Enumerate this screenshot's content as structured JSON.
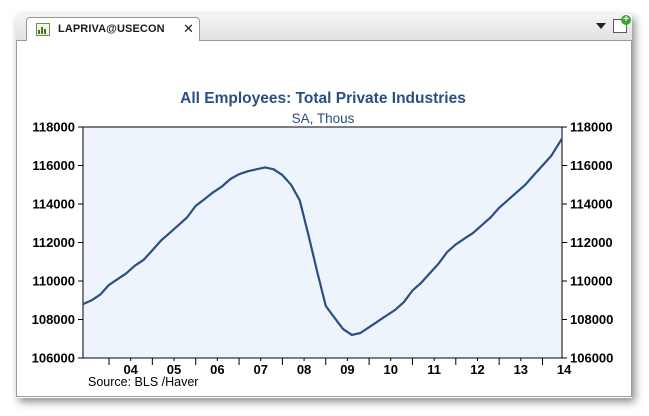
{
  "tab": {
    "label": "LAPRIVA@USECON",
    "close_glyph": "✕"
  },
  "toolbar": {
    "dropdown_icon": "chevron-down-icon",
    "chart_icon": "add-chart-icon"
  },
  "colors": {
    "line": "#2b4f80",
    "plot_bg": "#eef4fc",
    "title": "#2b4f80"
  },
  "chart_data": {
    "type": "line",
    "title": "All Employees: Total Private Industries",
    "subtitle": "SA, Thous",
    "source": "Source:  BLS /Haver",
    "x_tick_labels": [
      "04",
      "05",
      "06",
      "07",
      "08",
      "09",
      "10",
      "11",
      "12",
      "13",
      "14"
    ],
    "x_range": [
      2003.4,
      2014.45
    ],
    "ylim": [
      106000,
      118000
    ],
    "y_ticks": [
      106000,
      108000,
      110000,
      112000,
      114000,
      116000,
      118000
    ],
    "grid": false,
    "series": [
      {
        "x": [
          2003.4,
          2003.6,
          2003.8,
          2004.0,
          2004.2,
          2004.4,
          2004.6,
          2004.8,
          2005.0,
          2005.2,
          2005.4,
          2005.6,
          2005.8,
          2006.0,
          2006.2,
          2006.4,
          2006.6,
          2006.8,
          2007.0,
          2007.2,
          2007.4,
          2007.6,
          2007.8,
          2008.0,
          2008.2,
          2008.4,
          2008.6,
          2008.8,
          2009.0,
          2009.2,
          2009.4,
          2009.6,
          2009.8,
          2010.0,
          2010.2,
          2010.4,
          2010.6,
          2010.8,
          2011.0,
          2011.2,
          2011.4,
          2011.6,
          2011.8,
          2012.0,
          2012.2,
          2012.4,
          2012.6,
          2012.8,
          2013.0,
          2013.2,
          2013.4,
          2013.6,
          2013.8,
          2014.0,
          2014.2,
          2014.45
        ],
        "y": [
          108800,
          109000,
          109300,
          109800,
          110100,
          110400,
          110800,
          111100,
          111600,
          112100,
          112500,
          112900,
          113300,
          113900,
          114250,
          114600,
          114900,
          115300,
          115550,
          115700,
          115800,
          115900,
          115800,
          115500,
          115000,
          114200,
          112400,
          110500,
          108700,
          108100,
          107500,
          107200,
          107300,
          107600,
          107900,
          108200,
          108500,
          108900,
          109500,
          109900,
          110400,
          110900,
          111500,
          111900,
          112200,
          112500,
          112900,
          113300,
          113800,
          114200,
          114600,
          115000,
          115500,
          116000,
          116500,
          117400
        ]
      }
    ]
  }
}
